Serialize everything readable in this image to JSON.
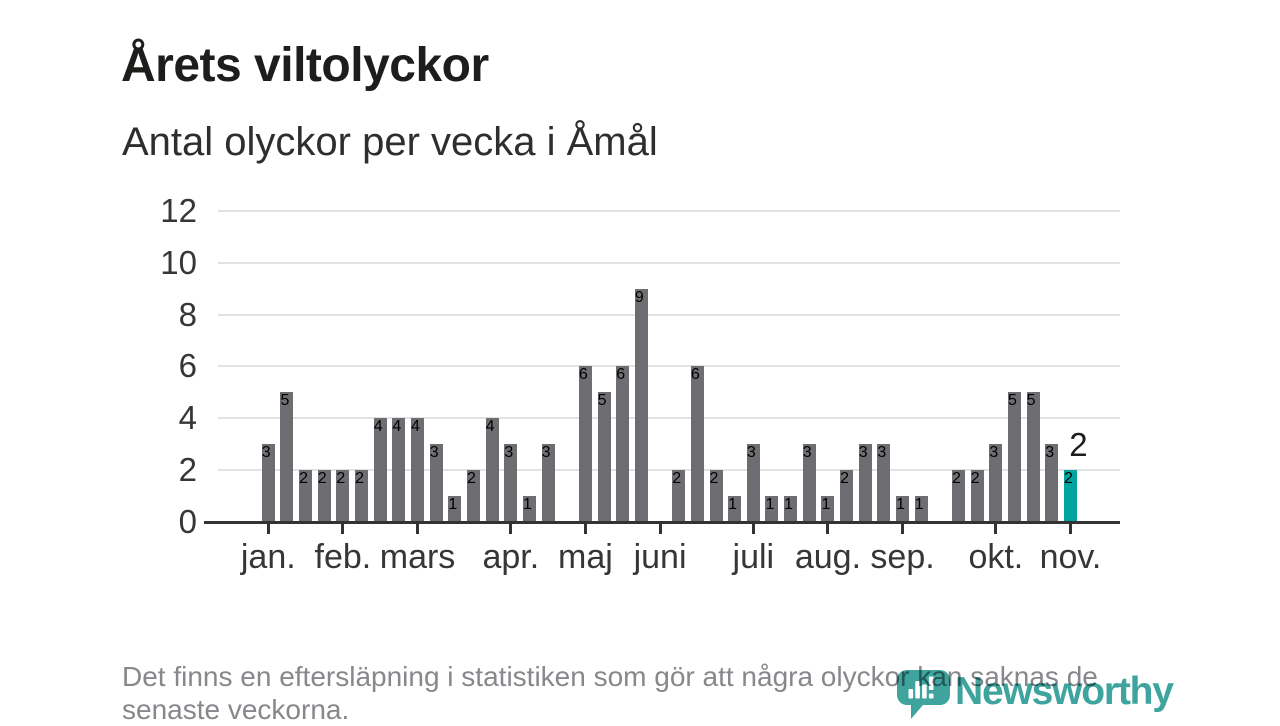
{
  "title": "Årets viltolyckor",
  "subtitle": "Antal olyckor per vecka i Åmål",
  "footer": {
    "lines": [
      "Det finns en eftersläpning i statistiken som gör att några olyckor kan saknas de",
      "senaste veckorna."
    ]
  },
  "logo": {
    "text": "Newsworthy",
    "icon": "newsworthy-pin-barchart-icon"
  },
  "colors": {
    "bar": "#6e6e72",
    "highlight": "#00a49d",
    "grid": "#e2e2e2",
    "axis": "#333336",
    "text_dark": "#1d1d1b",
    "text": "#363636",
    "muted": "#87878c",
    "logo_teal": "#3fa49e",
    "background": "#ffffff"
  },
  "chart_data": {
    "type": "bar",
    "title": "Årets viltolyckor",
    "subtitle": "Antal olyckor per vecka i Åmål",
    "x_unit": "vecka",
    "ylim": [
      0,
      12
    ],
    "yticks": [
      0,
      2,
      4,
      6,
      8,
      10,
      12
    ],
    "grid": true,
    "legend": "none",
    "values": [
      3,
      5,
      2,
      2,
      2,
      2,
      4,
      4,
      4,
      3,
      1,
      2,
      4,
      3,
      1,
      3,
      0,
      6,
      5,
      6,
      9,
      0,
      2,
      6,
      2,
      1,
      3,
      1,
      1,
      3,
      1,
      2,
      3,
      3,
      1,
      1,
      0,
      2,
      2,
      3,
      5,
      5,
      3,
      2
    ],
    "months": [
      {
        "label": "jan.",
        "week_index": 0
      },
      {
        "label": "feb.",
        "week_index": 4
      },
      {
        "label": "mars",
        "week_index": 8
      },
      {
        "label": "apr.",
        "week_index": 13
      },
      {
        "label": "maj",
        "week_index": 17
      },
      {
        "label": "juni",
        "week_index": 21
      },
      {
        "label": "juli",
        "week_index": 26
      },
      {
        "label": "aug.",
        "week_index": 30
      },
      {
        "label": "sep.",
        "week_index": 34
      },
      {
        "label": "okt.",
        "week_index": 39
      },
      {
        "label": "nov.",
        "week_index": 43
      }
    ],
    "highlight_index": 43,
    "highlight_label": "2"
  }
}
